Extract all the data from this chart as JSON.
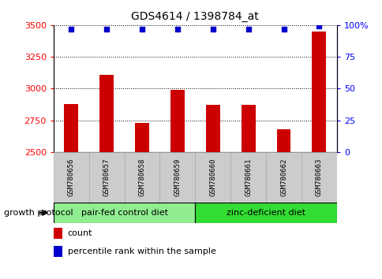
{
  "title": "GDS4614 / 1398784_at",
  "samples": [
    "GSM780656",
    "GSM780657",
    "GSM780658",
    "GSM780659",
    "GSM780660",
    "GSM780661",
    "GSM780662",
    "GSM780663"
  ],
  "counts": [
    2880,
    3110,
    2730,
    2990,
    2870,
    2875,
    2680,
    3450
  ],
  "percentiles": [
    97,
    97,
    97,
    97,
    97,
    97,
    97,
    99
  ],
  "ylim_left": [
    2500,
    3500
  ],
  "ylim_right": [
    0,
    100
  ],
  "yticks_left": [
    2500,
    2750,
    3000,
    3250,
    3500
  ],
  "yticks_right": [
    0,
    25,
    50,
    75,
    100
  ],
  "bar_color": "#cc0000",
  "dot_color": "#0000cc",
  "group1_label": "pair-fed control diet",
  "group2_label": "zinc-deficient diet",
  "group1_color": "#90ee90",
  "group2_color": "#33dd33",
  "group1_indices": [
    0,
    1,
    2,
    3
  ],
  "group2_indices": [
    4,
    5,
    6,
    7
  ],
  "protocol_label": "growth protocol",
  "legend_count_label": "count",
  "legend_pct_label": "percentile rank within the sample",
  "tick_label_area_color": "#cccccc",
  "bar_width": 0.4
}
